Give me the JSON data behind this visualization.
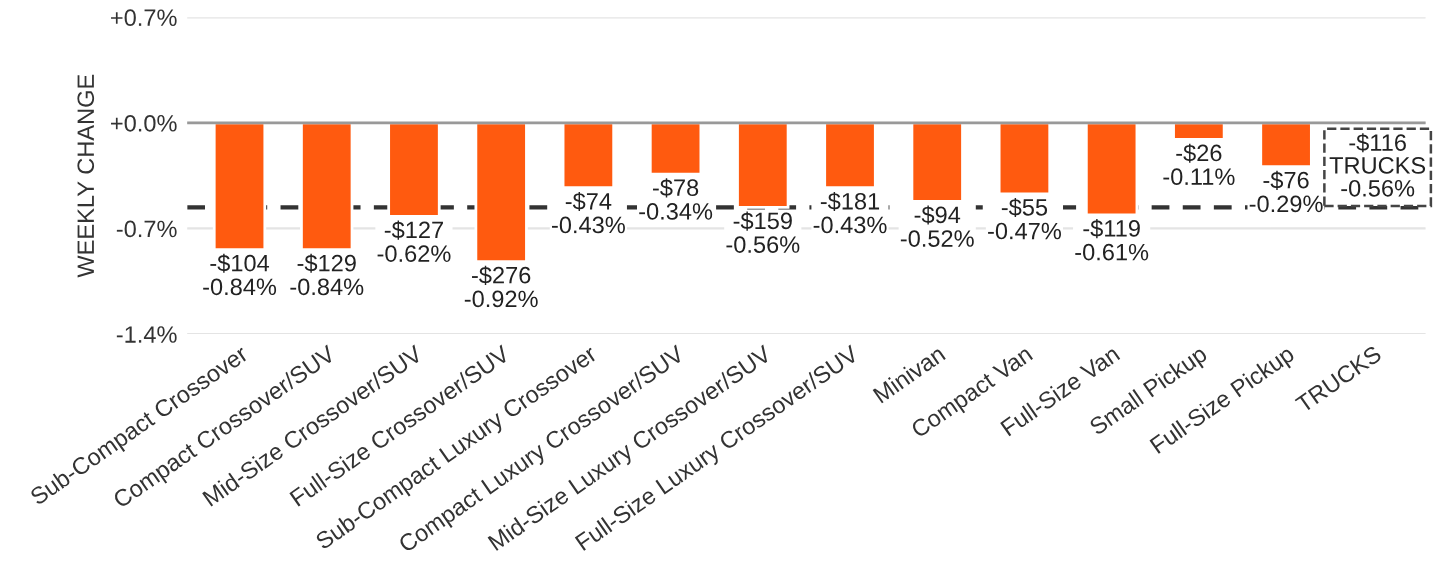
{
  "chart_data": {
    "type": "bar",
    "ylabel": "WEEKLY CHANGE",
    "categories": [
      "Sub-Compact Crossover",
      "Compact Crossover/SUV",
      "Mid-Size Crossover/SUV",
      "Full-Size Crossover/SUV",
      "Sub-Compact Luxury Crossover",
      "Compact Luxury Crossover/SUV",
      "Mid-Size Luxury Crossover/SUV",
      "Full-Size Luxury Crossover/SUV",
      "Minivan",
      "Compact Van",
      "Full-Size Van",
      "Small Pickup",
      "Full-Size Pickup",
      "TRUCKS"
    ],
    "values": [
      -0.84,
      -0.84,
      -0.62,
      -0.92,
      -0.43,
      -0.34,
      -0.56,
      -0.43,
      -0.52,
      -0.47,
      -0.61,
      -0.11,
      -0.29,
      null
    ],
    "value_labels": [
      "-$104\n-0.84%",
      "-$129\n-0.84%",
      "-$127\n-0.62%",
      "-$276\n-0.92%",
      "-$74\n-0.43%",
      "-$78\n-0.34%",
      "-$159\n-0.56%",
      "-$181\n-0.43%",
      "-$94\n-0.52%",
      "-$55\n-0.47%",
      "-$119\n-0.61%",
      "-$26\n-0.11%",
      "-$76\n-0.29%",
      null
    ],
    "color": "#ff5a0f",
    "ylim": [
      -1.4,
      0.7
    ],
    "yticks": [
      {
        "value": 0.7,
        "label": "+0.7%"
      },
      {
        "value": 0.0,
        "label": "+0.0%"
      },
      {
        "value": -0.7,
        "label": "-0.7%"
      },
      {
        "value": -1.4,
        "label": "-1.4%"
      }
    ],
    "grid": "y",
    "ref_lines": [
      {
        "axis": "y",
        "value": -0.56,
        "color": "#333333",
        "line_style": "dashed"
      }
    ],
    "annotations": [
      {
        "text": "-$116\nTRUCKS\n-0.56%",
        "x": "TRUCKS",
        "y": -0.56
      }
    ]
  }
}
